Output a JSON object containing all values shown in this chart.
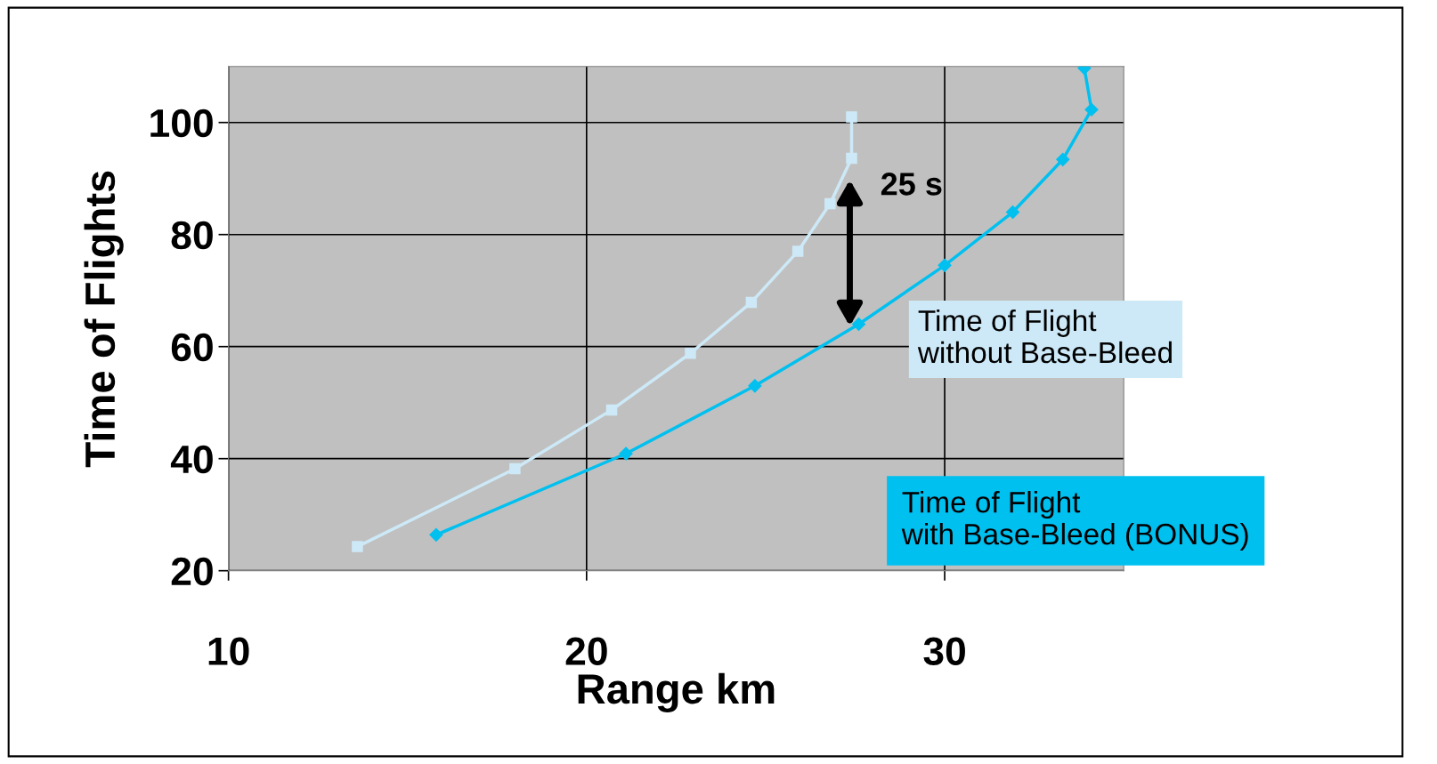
{
  "chart_data": {
    "type": "line",
    "xlabel": "Range km",
    "ylabel": "Time of Flights",
    "xlim": [
      10,
      35
    ],
    "xticks": [
      10,
      20,
      30
    ],
    "ylim": [
      20,
      110
    ],
    "yticks": [
      20,
      40,
      60,
      80,
      100
    ],
    "grid": true,
    "legend": false,
    "series": [
      {
        "name": "Time of Flight\nwithout Base-Bleed",
        "color": "#cde9f7",
        "marker": "square",
        "x": [
          13.6,
          18.0,
          20.7,
          22.9,
          24.6,
          25.9,
          26.8,
          27.4,
          27.4
        ],
        "values": [
          24.3,
          38.2,
          48.7,
          58.8,
          67.9,
          77.0,
          85.5,
          93.6,
          101.0
        ]
      },
      {
        "name": "Time of Flight\nwith Base-Bleed (BONUS)",
        "color": "#00c0f0",
        "marker": "diamond",
        "x": [
          15.8,
          21.1,
          24.7,
          27.6,
          30.0,
          31.9,
          33.3,
          34.1,
          33.9
        ],
        "values": [
          26.4,
          40.9,
          53.0,
          64.0,
          74.5,
          84.0,
          93.4,
          102.3,
          109.7
        ]
      }
    ],
    "annotations": [
      "25 s"
    ]
  }
}
